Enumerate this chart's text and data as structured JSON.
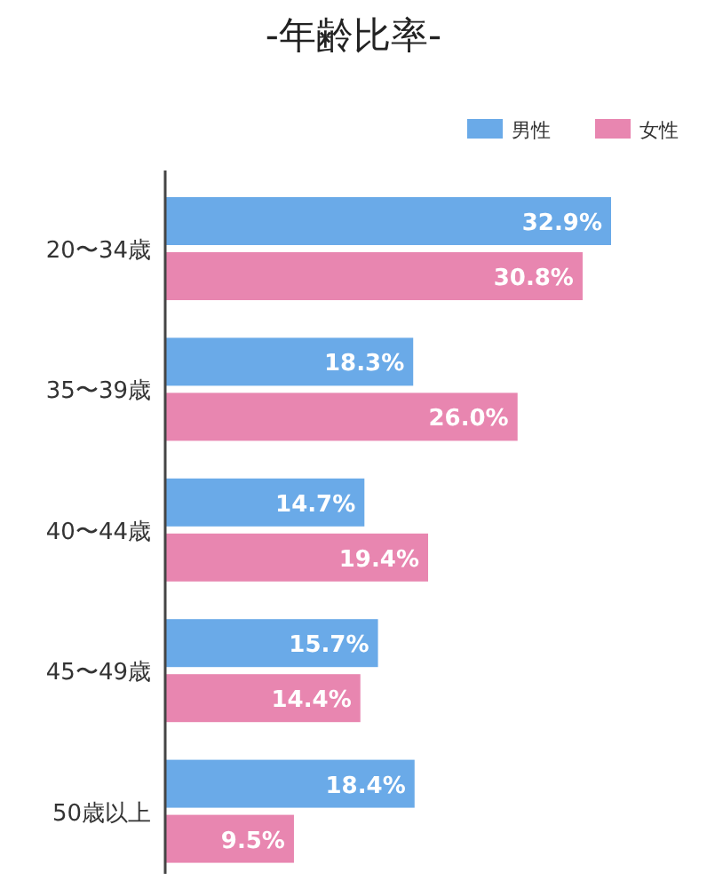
{
  "chart_data": {
    "type": "bar",
    "orientation": "horizontal",
    "title": "-年齢比率-",
    "legend": "top right",
    "categories": [
      "20〜34歳",
      "35〜39歳",
      "40〜44歳",
      "45〜49歳",
      "50歳以上"
    ],
    "series": [
      {
        "name": "男性",
        "color": "#6aaae8",
        "values": [
          32.9,
          18.3,
          14.7,
          15.7,
          18.4
        ],
        "value_labels": [
          "32.9%",
          "18.3%",
          "14.7%",
          "15.7%",
          "18.4%"
        ]
      },
      {
        "name": "女性",
        "color": "#e886b0",
        "values": [
          30.8,
          26.0,
          19.4,
          14.4,
          9.5
        ],
        "value_labels": [
          "30.8%",
          "26.0%",
          "19.4%",
          "14.4%",
          "9.5%"
        ]
      }
    ]
  }
}
